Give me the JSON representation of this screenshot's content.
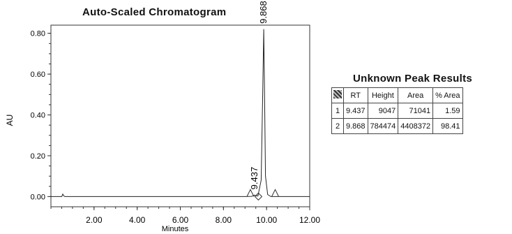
{
  "chart_data": {
    "type": "line",
    "title": "Auto-Scaled Chromatogram",
    "xlabel": "Minutes",
    "ylabel": "AU",
    "xlim": [
      0,
      12.0
    ],
    "ylim": [
      -0.05,
      0.84
    ],
    "xticks": [
      "2.00",
      "4.00",
      "6.00",
      "8.00",
      "10.00",
      "12.00"
    ],
    "yticks": [
      "0.00",
      "0.20",
      "0.40",
      "0.60",
      "0.80"
    ],
    "series": [
      {
        "x": [
          0.0,
          0.5,
          0.55,
          0.6,
          0.65,
          2.0,
          6.0,
          9.0,
          9.3,
          9.4,
          9.437,
          9.48,
          9.6,
          9.75,
          9.82,
          9.868,
          9.9,
          9.95,
          10.05,
          10.2,
          10.5,
          12.0
        ],
        "y": [
          0.0,
          0.0,
          0.012,
          0.003,
          0.0,
          0.0,
          0.0,
          0.0,
          0.001,
          0.004,
          0.007,
          0.004,
          0.003,
          0.08,
          0.5,
          0.82,
          0.55,
          0.1,
          0.01,
          0.0,
          0.0,
          0.0
        ]
      }
    ],
    "peak_labels": [
      {
        "x": 9.437,
        "y": 0.007,
        "text": "9.437"
      },
      {
        "x": 9.868,
        "y": 0.82,
        "text": "9.868"
      }
    ],
    "grid": false
  },
  "table": {
    "title": "Unknown Peak Results",
    "columns": [
      "RT",
      "Height",
      "Area",
      "% Area"
    ],
    "rows": [
      {
        "index": "1",
        "rt": "9.437",
        "height": "9047",
        "area": "71041",
        "pct_area": "1.59"
      },
      {
        "index": "2",
        "rt": "9.868",
        "height": "784474",
        "area": "4408372",
        "pct_area": "98.41"
      }
    ]
  }
}
